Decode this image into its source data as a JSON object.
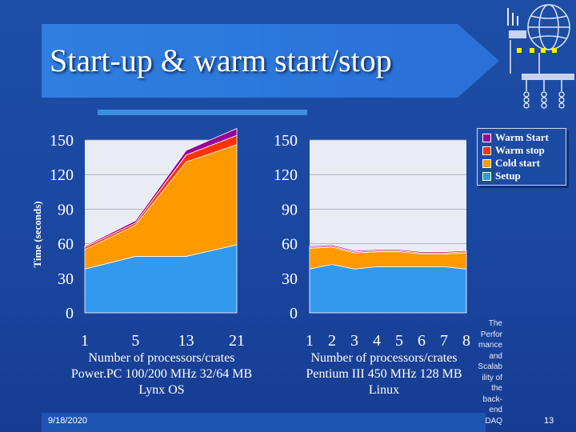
{
  "slide": {
    "title": "Start-up & warm start/stop",
    "date": "9/18/2020",
    "page_number": "13",
    "side_note": [
      "The",
      "Perfor",
      "mance",
      "and",
      "Scalab",
      "ility of",
      "the",
      "back-",
      "end",
      "DAQ"
    ]
  },
  "colors": {
    "setup": "#3399ee",
    "cold_start": "#ff9900",
    "warm_stop": "#ff3300",
    "warm_start": "#990099",
    "background": "#1a46a0"
  },
  "legend": [
    "Warm Start",
    "Warm stop",
    "Cold start",
    "Setup"
  ],
  "captions": {
    "left": [
      "Number of processors/crates",
      "Power.PC 100/200 MHz 32/64 MB",
      "Lynx OS"
    ],
    "right": [
      "Number of processors/crates",
      "Pentium III 450 MHz 128 MB",
      "Linux"
    ]
  },
  "chart_data": [
    {
      "type": "area",
      "stacked": true,
      "x": [
        "1",
        "5",
        "13",
        "21"
      ],
      "ylabel": "Time (seconds)",
      "ylim": [
        0,
        150
      ],
      "yticks": [
        0,
        30,
        60,
        90,
        120,
        150
      ],
      "series": [
        {
          "name": "Setup",
          "values": [
            38,
            49,
            49,
            59
          ]
        },
        {
          "name": "Cold start",
          "values": [
            17,
            27,
            82,
            87
          ]
        },
        {
          "name": "Warm stop",
          "values": [
            2,
            2,
            6,
            8
          ]
        },
        {
          "name": "Warm Start",
          "values": [
            1,
            2,
            4,
            6
          ]
        }
      ]
    },
    {
      "type": "area",
      "stacked": true,
      "x": [
        "1",
        "2",
        "3",
        "4",
        "5",
        "6",
        "7",
        "8"
      ],
      "ylim": [
        0,
        150
      ],
      "yticks": [
        0,
        30,
        60,
        90,
        120,
        150
      ],
      "series": [
        {
          "name": "Setup",
          "values": [
            38,
            42,
            38,
            40,
            40,
            40,
            40,
            38
          ]
        },
        {
          "name": "Cold start",
          "values": [
            18,
            15,
            14,
            13,
            13,
            11,
            11,
            14
          ]
        },
        {
          "name": "Warm stop",
          "values": [
            1,
            1,
            1,
            1,
            1,
            1,
            1,
            1
          ]
        },
        {
          "name": "Warm Start",
          "values": [
            1,
            1,
            1,
            1,
            1,
            1,
            1,
            1
          ]
        }
      ]
    }
  ]
}
